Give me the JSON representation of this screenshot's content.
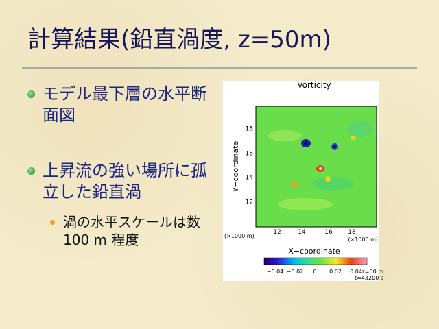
{
  "header": {
    "title": "計算結果(鉛直渦度, z=50m)"
  },
  "bullets": [
    {
      "text": "モデル最下層の水平断面図"
    },
    {
      "text": "上昇流の強い場所に孤立した鉛直渦",
      "sub": [
        "渦の水平スケールは数 100 m 程度"
      ]
    }
  ],
  "figure": {
    "title": "Vorticity",
    "y_label": "Y−coordinate",
    "x_label": "X−coordinate",
    "y_ticks": [
      "18",
      "16",
      "14",
      "12"
    ],
    "x_ticks": [
      "12",
      "14",
      "16",
      "18"
    ],
    "y_unit": "(×1000 m)",
    "x_unit": "(×1000 m)",
    "colorbar_ticks": [
      "−0.04",
      "−0.02",
      "0",
      "0.02",
      "0.04"
    ],
    "info": [
      "z=50  m",
      "t=43200  s"
    ]
  }
}
